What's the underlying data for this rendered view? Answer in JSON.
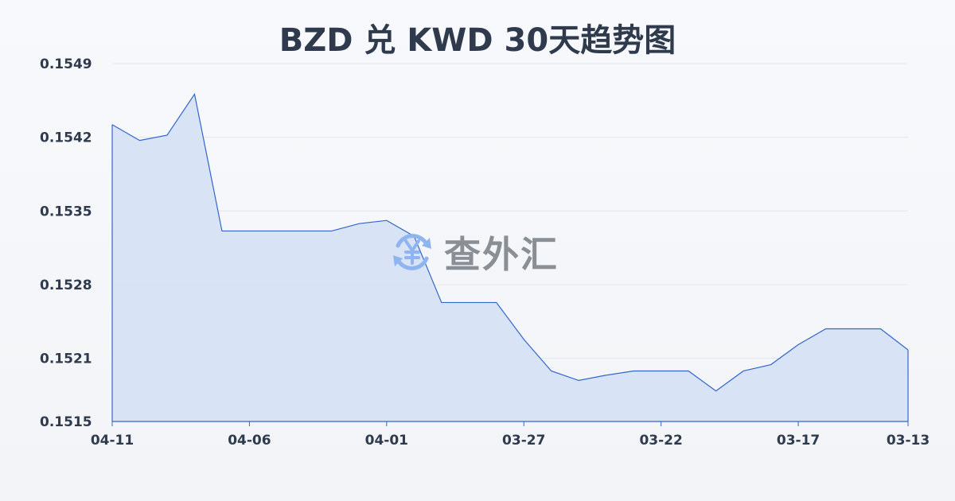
{
  "chart_data": {
    "type": "area",
    "title": "BZD 兑 KWD 30天趋势图",
    "xlabel": "",
    "ylabel": "",
    "ylim": [
      0.1515,
      0.1549
    ],
    "y_ticks": [
      "0.1549",
      "0.1542",
      "0.1535",
      "0.1528",
      "0.1521",
      "0.1515"
    ],
    "x_ticks": [
      "04-11",
      "04-06",
      "04-01",
      "03-27",
      "03-22",
      "03-17",
      "03-13"
    ],
    "grid": true,
    "x": [
      "04-11",
      "04-10",
      "04-09",
      "04-08",
      "04-07",
      "04-06",
      "04-05",
      "04-04",
      "04-03",
      "04-02",
      "04-01",
      "03-31",
      "03-30",
      "03-29",
      "03-28",
      "03-27",
      "03-26",
      "03-25",
      "03-24",
      "03-23",
      "03-22",
      "03-21",
      "03-20",
      "03-19",
      "03-18",
      "03-17",
      "03-16",
      "03-15",
      "03-14",
      "03-13"
    ],
    "values": [
      0.15432,
      0.15417,
      0.15422,
      0.15461,
      0.15331,
      0.15331,
      0.15331,
      0.15331,
      0.15331,
      0.15338,
      0.15341,
      0.15326,
      0.15263,
      0.15263,
      0.15263,
      0.15228,
      0.15198,
      0.15189,
      0.15194,
      0.15198,
      0.15198,
      0.15198,
      0.15179,
      0.15198,
      0.15204,
      0.15223,
      0.15238,
      0.15238,
      0.15238,
      0.15218
    ],
    "line_color": "#3366cc",
    "fill_color": "#d6e1f5"
  },
  "watermark": {
    "text": "查外汇",
    "icon": "yen-exchange-icon"
  }
}
